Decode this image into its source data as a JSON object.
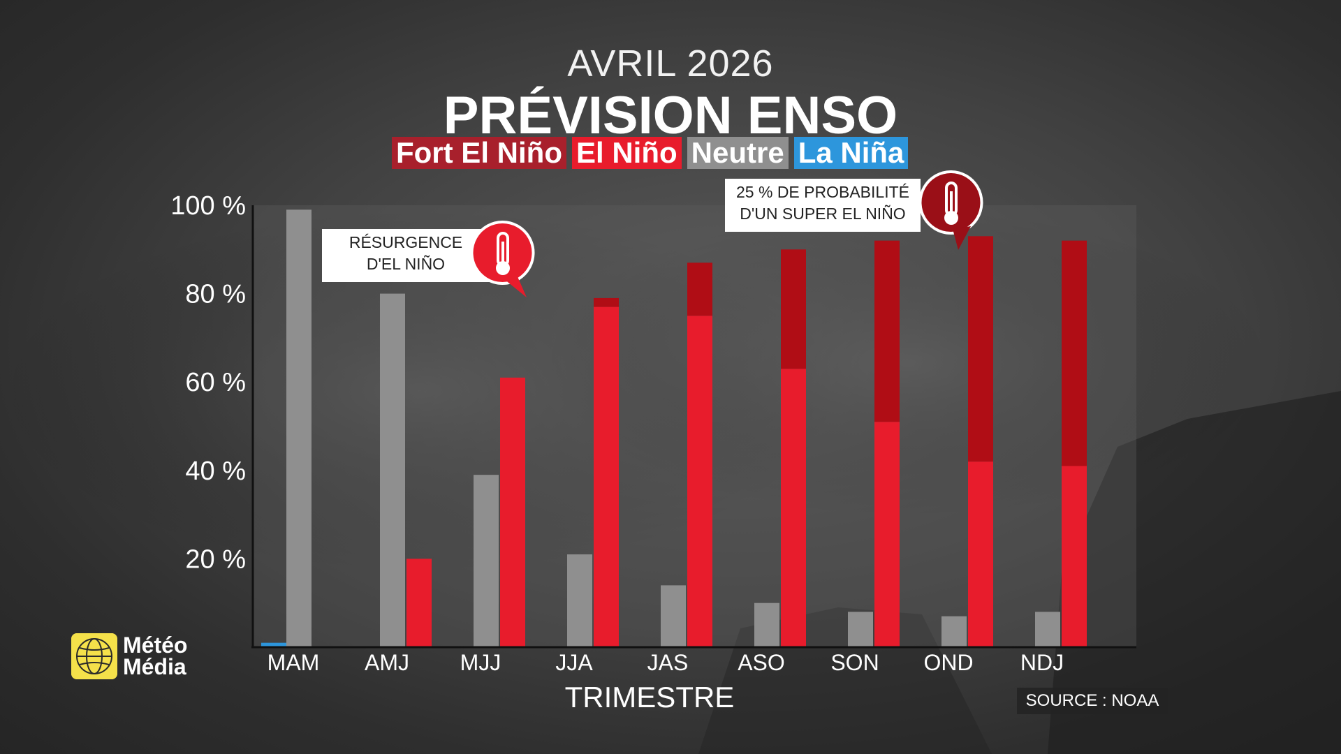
{
  "header": {
    "subtitle": "AVRIL 2026",
    "title": "PRÉVISION ENSO"
  },
  "legend": [
    {
      "label": "Fort El Niño",
      "color": "#a8202c"
    },
    {
      "label": "El Niño",
      "color": "#e81c2c"
    },
    {
      "label": "Neutre",
      "color": "#8f8f8f"
    },
    {
      "label": "La Niña",
      "color": "#2d96dc"
    }
  ],
  "callouts": {
    "resurgence": {
      "line1": "RÉSURGENCE",
      "line2": "D'EL NIÑO",
      "icon": "thermometer-icon"
    },
    "super": {
      "line1": "25 % DE PROBABILITÉ",
      "line2": "D'UN SUPER EL NIÑO",
      "icon": "thermometer-icon"
    }
  },
  "brand": {
    "line1": "Météo",
    "line2": "Média"
  },
  "source": "SOURCE : NOAA",
  "chart_data": {
    "type": "bar",
    "title": "PRÉVISION ENSO",
    "xlabel": "TRIMESTRE",
    "ylabel": "",
    "ylim": [
      0,
      100
    ],
    "yticks": [
      "20 %",
      "40 %",
      "60 %",
      "80 %",
      "100 %"
    ],
    "ytick_values": [
      20,
      40,
      60,
      80,
      100
    ],
    "categories": [
      "MAM",
      "AMJ",
      "MJJ",
      "JJA",
      "JAS",
      "ASO",
      "SON",
      "OND",
      "NDJ"
    ],
    "series": [
      {
        "name": "La Niña",
        "color": "#2d96dc",
        "values": [
          1,
          0,
          0,
          0,
          0,
          0,
          0,
          0,
          0
        ]
      },
      {
        "name": "Neutre",
        "color": "#8f8f8f",
        "values": [
          99,
          80,
          39,
          21,
          14,
          10,
          8,
          7,
          8
        ]
      },
      {
        "name": "El Niño",
        "color": "#e81c2c",
        "values": [
          0,
          20,
          61,
          77,
          75,
          63,
          51,
          42,
          41
        ]
      },
      {
        "name": "Fort El Niño",
        "color": "#b00d15",
        "values": [
          0,
          0,
          0,
          2,
          12,
          27,
          41,
          51,
          51
        ]
      }
    ]
  }
}
